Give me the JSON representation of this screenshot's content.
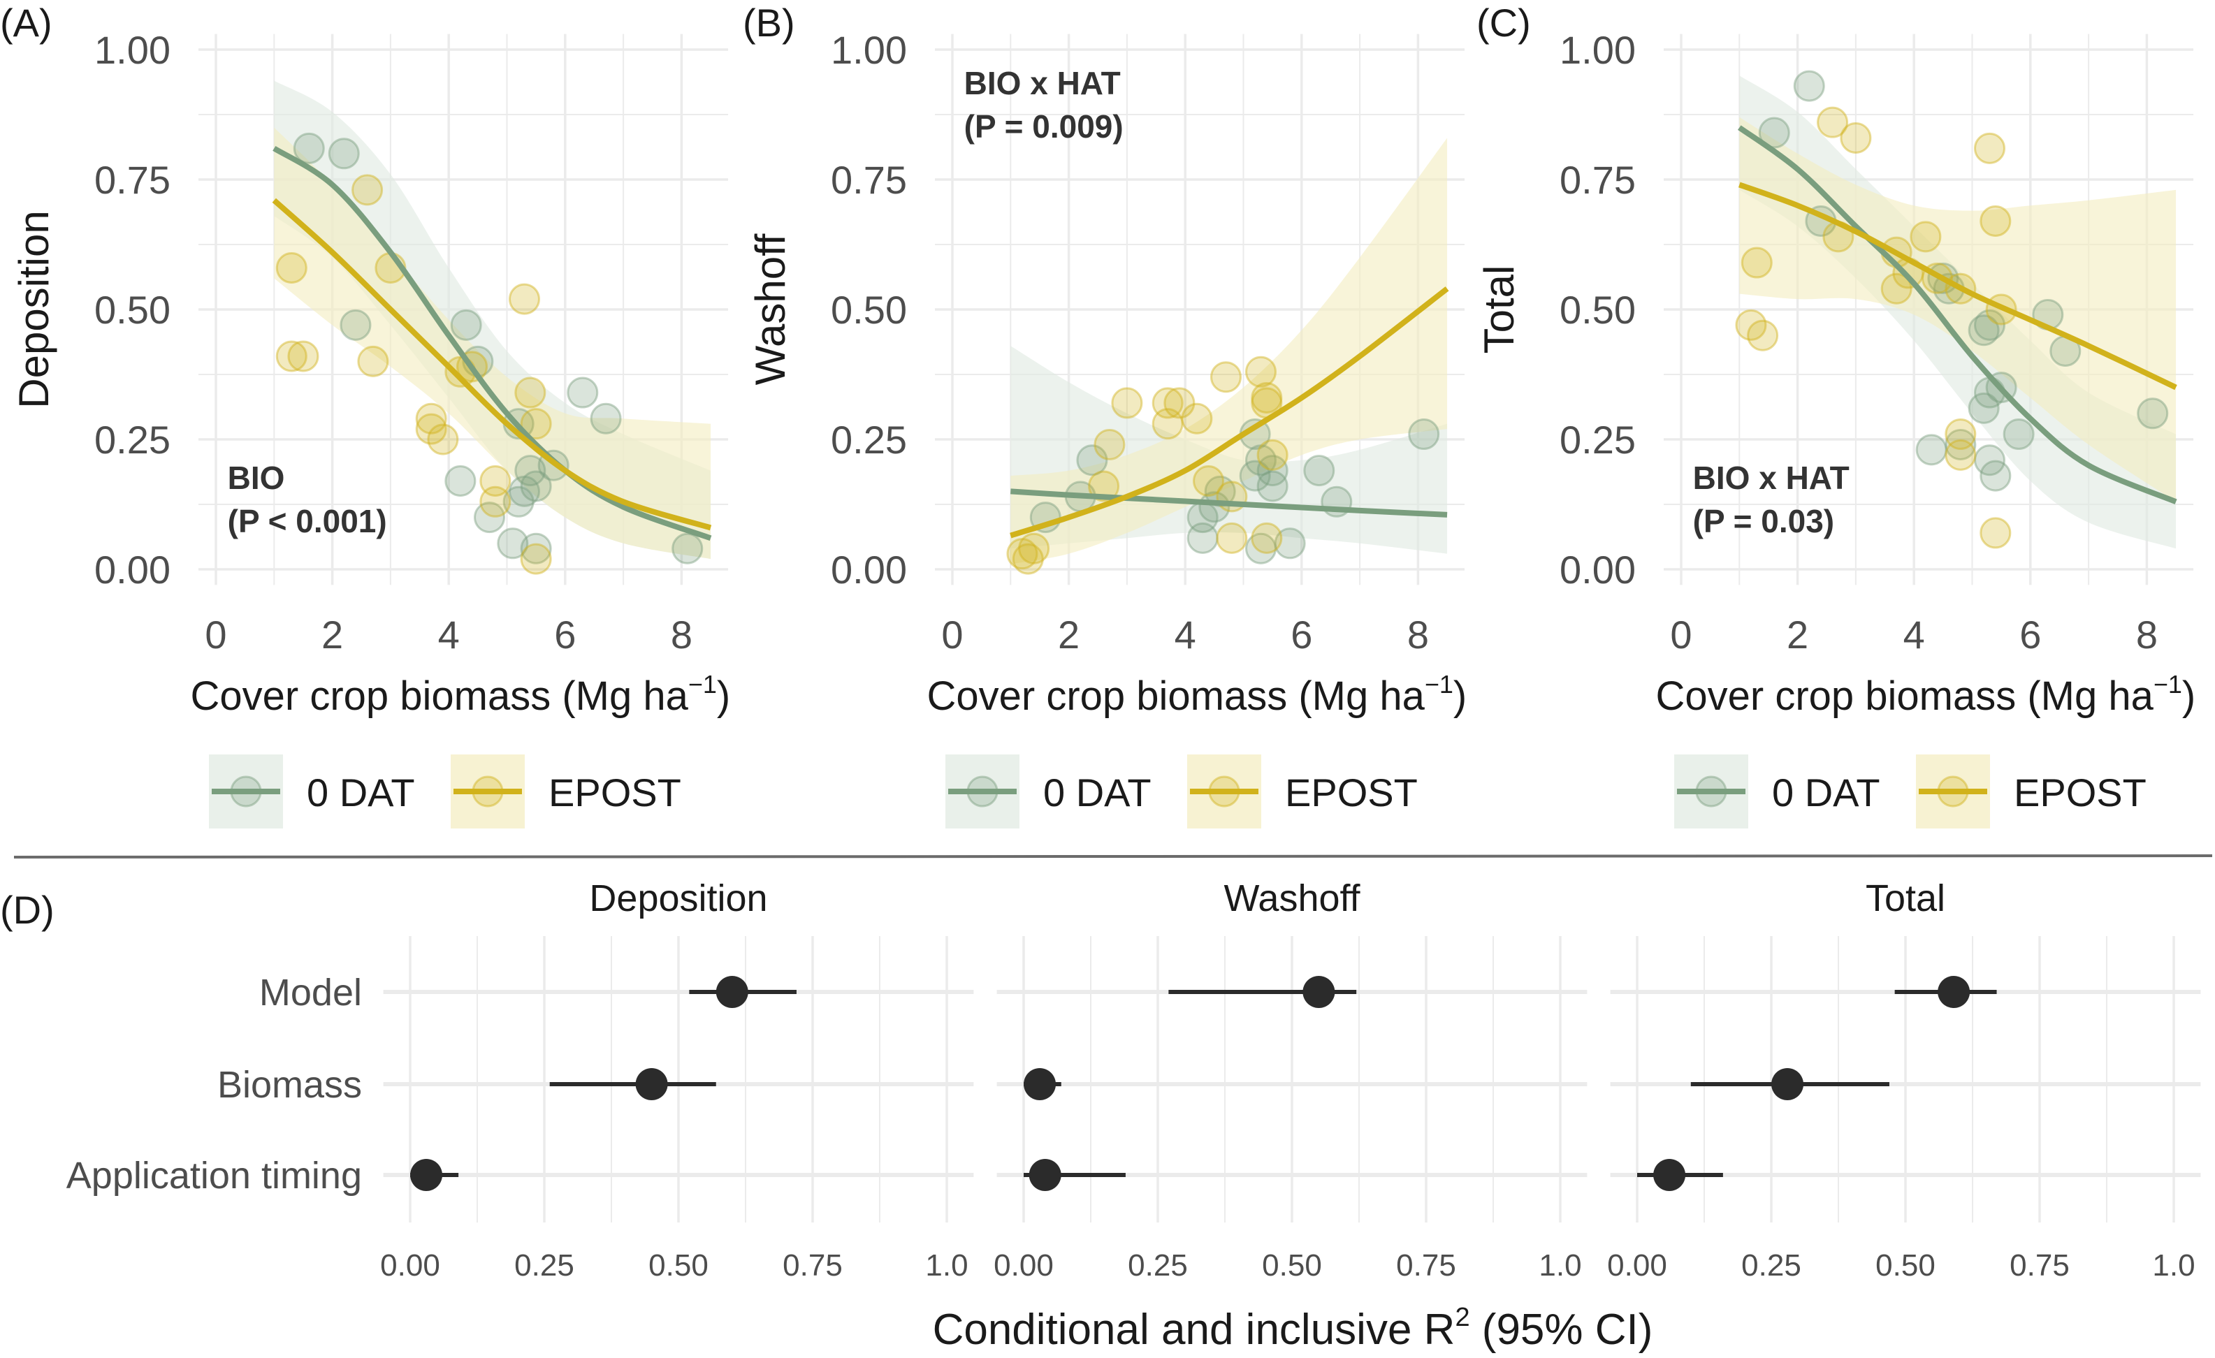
{
  "colors": {
    "dat0": "#7a9e7e",
    "epost": "#d1b21b",
    "grid": "#ebebeb",
    "point_d": "#2b2b2b"
  },
  "legend": {
    "items": [
      {
        "label": "0 DAT",
        "series": "dat0"
      },
      {
        "label": "EPOST",
        "series": "epost"
      }
    ]
  },
  "chart_data": [
    {
      "panel_label": "(A)",
      "type": "scatter",
      "xlabel": "Cover crop biomass (Mg ha",
      "xlabel_sup": "−1",
      "xlabel_end": ")",
      "ylabel": "Deposition",
      "xticks": [
        "0",
        "2",
        "4",
        "6",
        "8"
      ],
      "yticks": [
        "0.00",
        "0.25",
        "0.50",
        "0.75",
        "1.00"
      ],
      "xlim": [
        -0.3,
        8.8
      ],
      "ylim": [
        -0.03,
        1.03
      ],
      "grid": true,
      "annotation": [
        "BIO",
        "(P < 0.001)"
      ],
      "annotation_pos": "bottom-left",
      "fit_x": [
        1,
        2,
        3,
        4,
        5,
        6,
        7,
        8.5
      ],
      "series": [
        {
          "name": "0 DAT",
          "key": "dat0",
          "points": [
            [
              1.6,
              0.81
            ],
            [
              2.2,
              0.8
            ],
            [
              2.4,
              0.47
            ],
            [
              4.3,
              0.47
            ],
            [
              4.5,
              0.4
            ],
            [
              5.2,
              0.28
            ],
            [
              6.3,
              0.34
            ],
            [
              6.7,
              0.29
            ],
            [
              5.8,
              0.2
            ],
            [
              5.4,
              0.19
            ],
            [
              5.5,
              0.16
            ],
            [
              5.2,
              0.13
            ],
            [
              4.2,
              0.17
            ],
            [
              4.7,
              0.1
            ],
            [
              5.1,
              0.05
            ],
            [
              5.5,
              0.04
            ],
            [
              8.1,
              0.04
            ],
            [
              5.3,
              0.15
            ]
          ],
          "fit": [
            0.81,
            0.74,
            0.61,
            0.45,
            0.3,
            0.19,
            0.12,
            0.06
          ],
          "upper": [
            0.94,
            0.88,
            0.76,
            0.58,
            0.42,
            0.32,
            0.26,
            0.19
          ],
          "lower": [
            0.68,
            0.6,
            0.47,
            0.33,
            0.19,
            0.1,
            0.05,
            0.02
          ]
        },
        {
          "name": "EPOST",
          "key": "epost",
          "points": [
            [
              1.3,
              0.58
            ],
            [
              1.3,
              0.41
            ],
            [
              1.5,
              0.41
            ],
            [
              2.6,
              0.73
            ],
            [
              2.7,
              0.4
            ],
            [
              3.0,
              0.58
            ],
            [
              3.7,
              0.29
            ],
            [
              3.7,
              0.27
            ],
            [
              3.9,
              0.25
            ],
            [
              4.2,
              0.38
            ],
            [
              4.4,
              0.39
            ],
            [
              4.8,
              0.17
            ],
            [
              4.8,
              0.13
            ],
            [
              5.3,
              0.52
            ],
            [
              5.4,
              0.34
            ],
            [
              5.5,
              0.28
            ],
            [
              5.5,
              0.02
            ]
          ],
          "fit": [
            0.71,
            0.61,
            0.5,
            0.39,
            0.28,
            0.19,
            0.13,
            0.08
          ],
          "upper": [
            0.85,
            0.74,
            0.61,
            0.48,
            0.37,
            0.3,
            0.29,
            0.28
          ],
          "lower": [
            0.56,
            0.47,
            0.39,
            0.3,
            0.19,
            0.1,
            0.05,
            0.02
          ]
        }
      ]
    },
    {
      "panel_label": "(B)",
      "type": "scatter",
      "xlabel": "Cover crop biomass (Mg ha",
      "xlabel_sup": "−1",
      "xlabel_end": ")",
      "ylabel": "Washoff",
      "xticks": [
        "0",
        "2",
        "4",
        "6",
        "8"
      ],
      "yticks": [
        "0.00",
        "0.25",
        "0.50",
        "0.75",
        "1.00"
      ],
      "xlim": [
        -0.3,
        8.8
      ],
      "ylim": [
        -0.03,
        1.03
      ],
      "grid": true,
      "annotation": [
        "BIO x HAT",
        "(P = 0.009)"
      ],
      "annotation_pos": "top-left",
      "fit_x": [
        1,
        2,
        3,
        4,
        5,
        6,
        7,
        8.5
      ],
      "series": [
        {
          "name": "0 DAT",
          "key": "dat0",
          "points": [
            [
              1.6,
              0.1
            ],
            [
              2.2,
              0.14
            ],
            [
              2.4,
              0.21
            ],
            [
              4.3,
              0.1
            ],
            [
              4.3,
              0.06
            ],
            [
              4.5,
              0.12
            ],
            [
              4.6,
              0.15
            ],
            [
              5.2,
              0.26
            ],
            [
              5.3,
              0.21
            ],
            [
              5.2,
              0.18
            ],
            [
              5.5,
              0.19
            ],
            [
              5.5,
              0.16
            ],
            [
              5.3,
              0.04
            ],
            [
              5.8,
              0.05
            ],
            [
              6.3,
              0.19
            ],
            [
              6.6,
              0.13
            ],
            [
              8.1,
              0.26
            ]
          ],
          "fit": [
            0.15,
            0.143,
            0.137,
            0.131,
            0.125,
            0.119,
            0.113,
            0.105
          ],
          "upper": [
            0.43,
            0.36,
            0.3,
            0.25,
            0.21,
            0.21,
            0.23,
            0.28
          ],
          "lower": [
            0.04,
            0.05,
            0.06,
            0.07,
            0.07,
            0.06,
            0.05,
            0.03
          ]
        },
        {
          "name": "EPOST",
          "key": "epost",
          "points": [
            [
              1.2,
              0.03
            ],
            [
              1.3,
              0.02
            ],
            [
              1.4,
              0.04
            ],
            [
              2.6,
              0.16
            ],
            [
              2.7,
              0.24
            ],
            [
              3.0,
              0.32
            ],
            [
              3.7,
              0.32
            ],
            [
              3.7,
              0.28
            ],
            [
              3.9,
              0.32
            ],
            [
              4.2,
              0.29
            ],
            [
              4.4,
              0.17
            ],
            [
              4.7,
              0.37
            ],
            [
              4.8,
              0.14
            ],
            [
              4.8,
              0.06
            ],
            [
              5.3,
              0.38
            ],
            [
              5.4,
              0.33
            ],
            [
              5.4,
              0.32
            ],
            [
              5.5,
              0.22
            ],
            [
              5.4,
              0.06
            ]
          ],
          "fit": [
            0.065,
            0.1,
            0.14,
            0.19,
            0.26,
            0.33,
            0.41,
            0.54
          ],
          "upper": [
            0.18,
            0.19,
            0.22,
            0.27,
            0.35,
            0.46,
            0.6,
            0.83
          ],
          "lower": [
            0.01,
            0.03,
            0.07,
            0.12,
            0.17,
            0.22,
            0.25,
            0.27
          ]
        }
      ]
    },
    {
      "panel_label": "(C)",
      "type": "scatter",
      "xlabel": "Cover crop biomass (Mg ha",
      "xlabel_sup": "−1",
      "xlabel_end": ")",
      "ylabel": "Total",
      "xticks": [
        "0",
        "2",
        "4",
        "6",
        "8"
      ],
      "yticks": [
        "0.00",
        "0.25",
        "0.50",
        "0.75",
        "1.00"
      ],
      "xlim": [
        -0.3,
        8.8
      ],
      "ylim": [
        -0.03,
        1.03
      ],
      "grid": true,
      "annotation": [
        "BIO x HAT",
        "(P = 0.03)"
      ],
      "annotation_pos": "bottom-left",
      "fit_x": [
        1,
        2,
        3,
        4,
        5,
        6,
        7,
        8.5
      ],
      "series": [
        {
          "name": "0 DAT",
          "key": "dat0",
          "points": [
            [
              1.6,
              0.84
            ],
            [
              2.2,
              0.93
            ],
            [
              2.4,
              0.67
            ],
            [
              4.3,
              0.23
            ],
            [
              4.5,
              0.56
            ],
            [
              4.6,
              0.54
            ],
            [
              5.2,
              0.46
            ],
            [
              5.3,
              0.47
            ],
            [
              5.3,
              0.34
            ],
            [
              5.2,
              0.31
            ],
            [
              5.5,
              0.35
            ],
            [
              5.3,
              0.21
            ],
            [
              5.4,
              0.18
            ],
            [
              5.8,
              0.26
            ],
            [
              6.3,
              0.49
            ],
            [
              6.6,
              0.42
            ],
            [
              8.1,
              0.3
            ],
            [
              4.8,
              0.24
            ]
          ],
          "fit": [
            0.85,
            0.77,
            0.66,
            0.55,
            0.41,
            0.29,
            0.2,
            0.13
          ],
          "upper": [
            0.95,
            0.88,
            0.77,
            0.66,
            0.55,
            0.44,
            0.34,
            0.26
          ],
          "lower": [
            0.73,
            0.66,
            0.56,
            0.44,
            0.3,
            0.17,
            0.09,
            0.04
          ]
        },
        {
          "name": "EPOST",
          "key": "epost",
          "points": [
            [
              1.3,
              0.59
            ],
            [
              1.2,
              0.47
            ],
            [
              1.4,
              0.45
            ],
            [
              2.6,
              0.86
            ],
            [
              2.7,
              0.64
            ],
            [
              3.0,
              0.83
            ],
            [
              3.7,
              0.54
            ],
            [
              3.7,
              0.61
            ],
            [
              3.9,
              0.57
            ],
            [
              4.2,
              0.64
            ],
            [
              4.4,
              0.56
            ],
            [
              4.8,
              0.26
            ],
            [
              4.8,
              0.22
            ],
            [
              4.8,
              0.54
            ],
            [
              5.3,
              0.81
            ],
            [
              5.4,
              0.67
            ],
            [
              5.5,
              0.5
            ],
            [
              5.4,
              0.07
            ]
          ],
          "fit": [
            0.74,
            0.7,
            0.65,
            0.59,
            0.53,
            0.48,
            0.43,
            0.35
          ],
          "upper": [
            0.87,
            0.8,
            0.74,
            0.7,
            0.69,
            0.7,
            0.71,
            0.73
          ],
          "lower": [
            0.53,
            0.52,
            0.52,
            0.49,
            0.42,
            0.33,
            0.24,
            0.13
          ]
        }
      ]
    },
    {
      "panel_label": "(D)",
      "type": "dot-interval",
      "xlabel": "Conditional and inclusive R",
      "xlabel_sup": "2",
      "xlabel_end": " (95% CI)",
      "categories": [
        "Model",
        "Biomass",
        "Application timing"
      ],
      "xticks": [
        "0.00",
        "0.25",
        "0.50",
        "0.75",
        "1.0"
      ],
      "xlim": [
        -0.05,
        1.05
      ],
      "grid": true,
      "facets": [
        {
          "title": "Deposition",
          "estimate": [
            0.6,
            0.45,
            0.03
          ],
          "ci_low": [
            0.52,
            0.26,
            0.0
          ],
          "ci_high": [
            0.72,
            0.57,
            0.09
          ]
        },
        {
          "title": "Washoff",
          "estimate": [
            0.55,
            0.03,
            0.04
          ],
          "ci_low": [
            0.27,
            0.0,
            0.0
          ],
          "ci_high": [
            0.62,
            0.07,
            0.19
          ]
        },
        {
          "title": "Total",
          "estimate": [
            0.59,
            0.28,
            0.06
          ],
          "ci_low": [
            0.48,
            0.1,
            0.0
          ],
          "ci_high": [
            0.67,
            0.47,
            0.16
          ]
        }
      ]
    }
  ]
}
